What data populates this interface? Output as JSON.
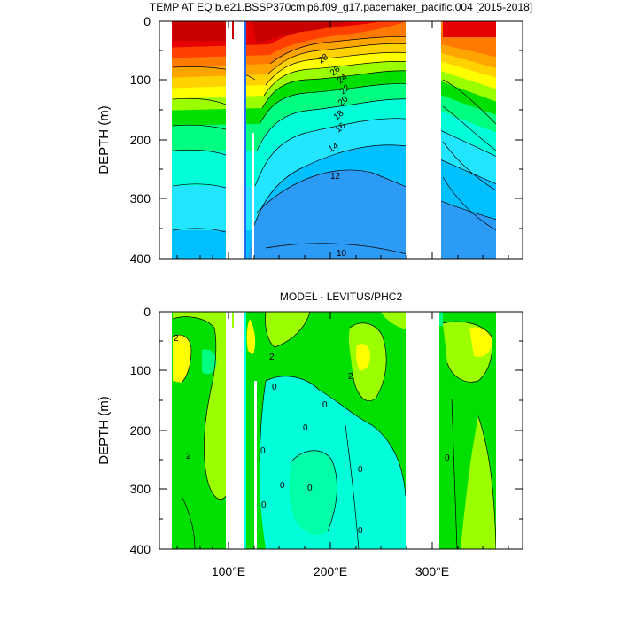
{
  "chart_data": [
    {
      "type": "heatmap",
      "title": "TEMP AT EQ b.e21.BSSP370cmip6.f09_g17.pacemaker_pacific.004 [2015-2018]",
      "ylabel": "DEPTH (m)",
      "xlabel": "",
      "xlim": [
        35,
        385
      ],
      "ylim": [
        400,
        0
      ],
      "x_ticks": [
        100,
        200,
        300
      ],
      "x_tick_labels": [
        "100°E",
        "200°E",
        "300°E"
      ],
      "y_ticks": [
        0,
        100,
        200,
        300,
        400
      ],
      "y_tick_labels": [
        "0",
        "100",
        "200",
        "300",
        "400"
      ],
      "contour_labels": [
        {
          "text": "28",
          "x": 180,
          "y": 70
        },
        {
          "text": "26",
          "x": 192,
          "y": 86
        },
        {
          "text": "24",
          "x": 198,
          "y": 98
        },
        {
          "text": "22",
          "x": 200,
          "y": 113
        },
        {
          "text": "20",
          "x": 202,
          "y": 130
        },
        {
          "text": "18",
          "x": 200,
          "y": 156
        },
        {
          "text": "16",
          "x": 206,
          "y": 188
        },
        {
          "text": "14",
          "x": 180,
          "y": 216
        },
        {
          "text": "12",
          "x": 190,
          "y": 262
        },
        {
          "text": "10",
          "x": 190,
          "y": 392
        }
      ],
      "land_mask_x": [
        [
          97,
          110
        ],
        [
          112,
          117
        ],
        [
          125,
          128
        ],
        [
          136,
          139
        ],
        [
          279,
          315
        ]
      ],
      "data_x_extent": [
        43,
        367
      ],
      "field": "temperature",
      "color_levels": [
        {
          "min": 8,
          "color": "#0000dd"
        },
        {
          "min": 10,
          "color": "#1f6bf2"
        },
        {
          "min": 11,
          "color": "#2b9bf5"
        },
        {
          "min": 12,
          "color": "#00c0ff"
        },
        {
          "min": 13,
          "color": "#22e6ff"
        },
        {
          "min": 14,
          "color": "#00ffd9"
        },
        {
          "min": 16,
          "color": "#00ff80"
        },
        {
          "min": 18,
          "color": "#00e000"
        },
        {
          "min": 20,
          "color": "#9cff00"
        },
        {
          "min": 22,
          "color": "#ffff00"
        },
        {
          "min": 24,
          "color": "#ffd200"
        },
        {
          "min": 25,
          "color": "#ffa500"
        },
        {
          "min": 26,
          "color": "#ff7a00"
        },
        {
          "min": 27,
          "color": "#ff4000"
        },
        {
          "min": 28,
          "color": "#e60000"
        },
        {
          "min": 29,
          "color": "#c80000"
        }
      ]
    },
    {
      "type": "heatmap",
      "title": "MODEL - LEVITUS/PHC2",
      "ylabel": "DEPTH (m)",
      "xlabel": "",
      "xlim": [
        35,
        385
      ],
      "ylim": [
        400,
        0
      ],
      "x_ticks": [
        100,
        200,
        300
      ],
      "x_tick_labels": [
        "100°E",
        "200°E",
        "300°E"
      ],
      "y_ticks": [
        0,
        100,
        200,
        300,
        400
      ],
      "y_tick_labels": [
        "0",
        "100",
        "200",
        "300",
        "400"
      ],
      "contour_labels": [
        {
          "text": "2",
          "x": 52,
          "y": 42
        },
        {
          "text": "2",
          "x": 134,
          "y": 82
        },
        {
          "text": "2",
          "x": 233,
          "y": 110
        },
        {
          "text": "2",
          "x": 50,
          "y": 246
        },
        {
          "text": "0",
          "x": 155,
          "y": 132
        },
        {
          "text": "0",
          "x": 197,
          "y": 162
        },
        {
          "text": "0",
          "x": 180,
          "y": 200
        },
        {
          "text": "0",
          "x": 138,
          "y": 238
        },
        {
          "text": "0",
          "x": 158,
          "y": 298
        },
        {
          "text": "0",
          "x": 180,
          "y": 302
        },
        {
          "text": "0",
          "x": 318,
          "y": 250
        },
        {
          "text": "0",
          "x": 136,
          "y": 330
        },
        {
          "text": "0",
          "x": 232,
          "y": 270
        },
        {
          "text": "0",
          "x": 228,
          "y": 372
        }
      ],
      "land_mask_x": [
        [
          97,
          110
        ],
        [
          112,
          117
        ],
        [
          125,
          128
        ],
        [
          136,
          139
        ],
        [
          279,
          315
        ]
      ],
      "data_x_extent": [
        43,
        367
      ],
      "field": "temperature difference",
      "color_levels": [
        {
          "min": -2,
          "color": "#00ffd9"
        },
        {
          "min": -1,
          "color": "#00ff80"
        },
        {
          "min": 0,
          "color": "#00e68c"
        },
        {
          "min": 1,
          "color": "#00e000"
        },
        {
          "min": 2,
          "color": "#9cff00"
        },
        {
          "min": 3,
          "color": "#ffff00"
        },
        {
          "min": 4,
          "color": "#ffd200"
        }
      ]
    }
  ]
}
